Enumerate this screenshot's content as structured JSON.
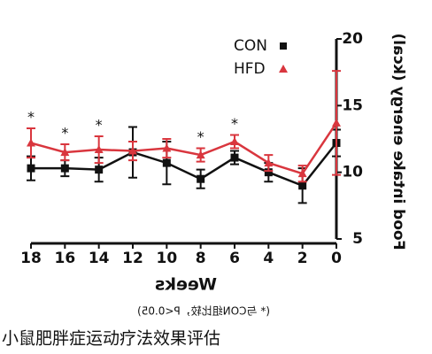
{
  "chart_data": {
    "type": "line",
    "y_label": "Food intake energy (kcal)",
    "x_label": "Weeks",
    "footnote": "(* 与CON组比较，P<0.05)",
    "x": [
      0,
      2,
      4,
      6,
      8,
      10,
      12,
      14,
      16,
      18
    ],
    "series": [
      {
        "name": "CON",
        "color": "#111111",
        "marker": "square",
        "values": [
          12.2,
          9.0,
          10.0,
          11.1,
          9.5,
          10.7,
          11.5,
          10.2,
          10.3,
          10.3
        ],
        "errors": [
          1.0,
          1.3,
          0.7,
          0.5,
          0.7,
          1.6,
          1.9,
          0.9,
          0.6,
          0.9
        ]
      },
      {
        "name": "HFD",
        "color": "#d9363e",
        "marker": "triangle",
        "values": [
          13.7,
          9.9,
          10.7,
          12.3,
          11.3,
          11.8,
          11.6,
          11.7,
          11.5,
          12.2
        ],
        "errors": [
          3.9,
          0.6,
          0.6,
          0.5,
          0.5,
          0.7,
          0.7,
          1.0,
          0.6,
          1.1
        ]
      }
    ],
    "significance": {
      "label": "*",
      "x": [
        6,
        8,
        14,
        16,
        18
      ]
    },
    "xlim": [
      0,
      18
    ],
    "xticks": [
      0,
      2,
      4,
      6,
      8,
      10,
      12,
      14,
      16,
      18
    ],
    "ylim": [
      5,
      20
    ],
    "yticks": [
      5,
      10,
      15,
      20
    ]
  },
  "caption": "小鼠肥胖症运动疗法效果评估"
}
